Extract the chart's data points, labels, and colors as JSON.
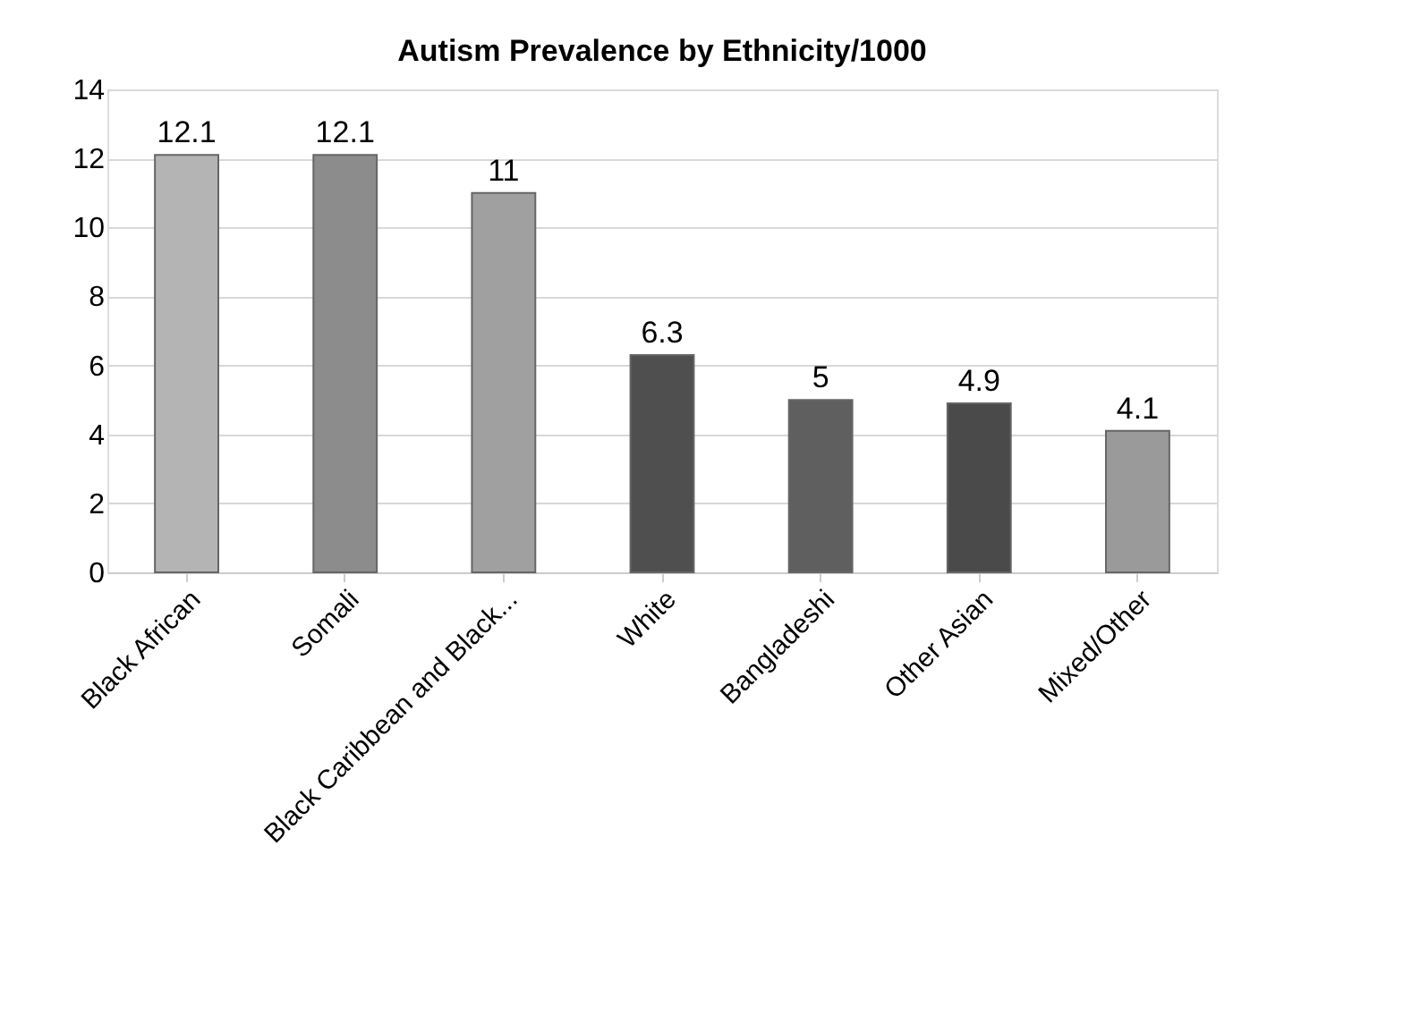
{
  "chart_data": {
    "type": "bar",
    "title": "Autism Prevalence by Ethnicity/1000",
    "categories": [
      "Black African",
      "Somali",
      "Black Caribbean and Black...",
      "White",
      "Bangladeshi",
      "Other Asian",
      "Mixed/Other"
    ],
    "values": [
      12.1,
      12.1,
      11,
      6.3,
      5,
      4.9,
      4.1
    ],
    "colors": [
      "#b4b4b4",
      "#8c8c8c",
      "#a0a0a0",
      "#4f4f4f",
      "#5f5f5f",
      "#4a4a4a",
      "#9a9a9a"
    ],
    "ylim": [
      0,
      14
    ],
    "yticks": [
      0,
      2,
      4,
      6,
      8,
      10,
      12,
      14
    ],
    "grid": "y",
    "data_labels": true
  }
}
